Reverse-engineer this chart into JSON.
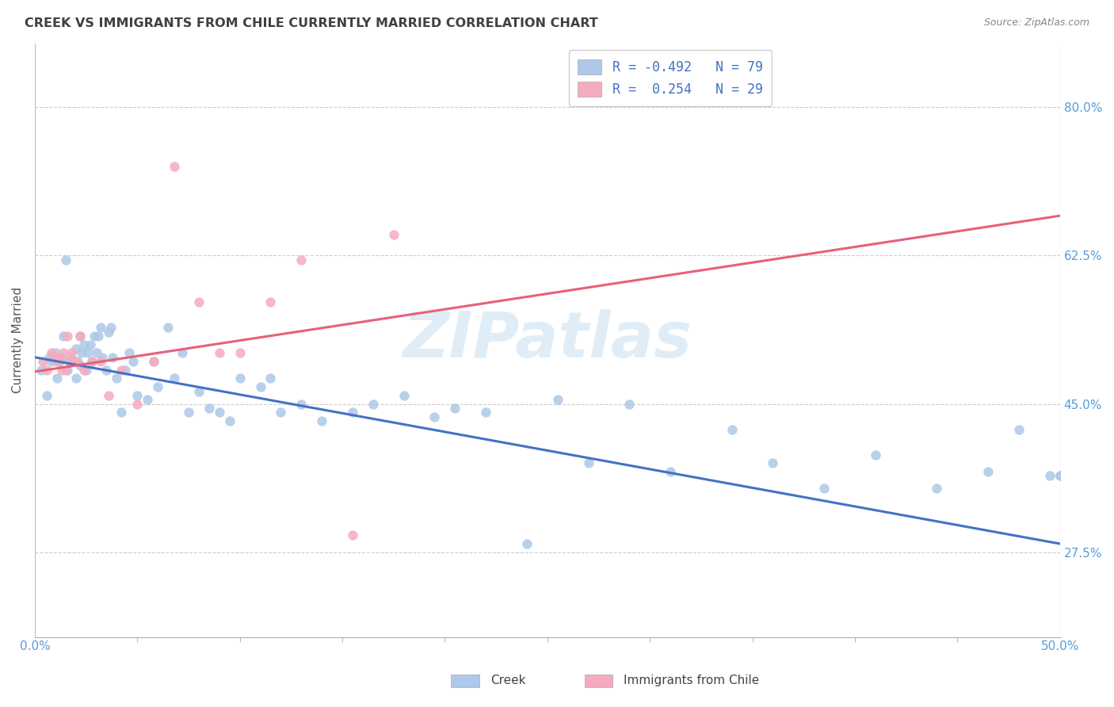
{
  "title": "CREEK VS IMMIGRANTS FROM CHILE CURRENTLY MARRIED CORRELATION CHART",
  "source": "Source: ZipAtlas.com",
  "ylabel": "Currently Married",
  "ytick_vals": [
    0.275,
    0.45,
    0.625,
    0.8
  ],
  "ytick_labels": [
    "27.5%",
    "45.0%",
    "62.5%",
    "80.0%"
  ],
  "xmin": 0.0,
  "xmax": 0.5,
  "ymin": 0.175,
  "ymax": 0.875,
  "series1_color": "#adc8e8",
  "series2_color": "#f5abbe",
  "line1_color": "#4472c4",
  "line2_color": "#e8607a",
  "watermark": "ZIPatlas",
  "title_color": "#404040",
  "axis_label_color": "#5b9bd5",
  "series1_label": "Creek",
  "series2_label": "Immigrants from Chile",
  "blue_line_x0": 0.0,
  "blue_line_y0": 0.505,
  "blue_line_x1": 0.5,
  "blue_line_y1": 0.285,
  "pink_line_x0": 0.0,
  "pink_line_y0": 0.488,
  "pink_line_x1": 0.5,
  "pink_line_y1": 0.672,
  "blue_scatter_x": [
    0.003,
    0.006,
    0.007,
    0.008,
    0.009,
    0.01,
    0.011,
    0.012,
    0.013,
    0.014,
    0.015,
    0.016,
    0.017,
    0.018,
    0.019,
    0.02,
    0.02,
    0.021,
    0.022,
    0.022,
    0.023,
    0.024,
    0.025,
    0.026,
    0.027,
    0.028,
    0.029,
    0.03,
    0.031,
    0.032,
    0.033,
    0.035,
    0.036,
    0.037,
    0.038,
    0.04,
    0.042,
    0.044,
    0.046,
    0.048,
    0.05,
    0.055,
    0.058,
    0.06,
    0.065,
    0.068,
    0.072,
    0.075,
    0.08,
    0.085,
    0.09,
    0.095,
    0.1,
    0.11,
    0.115,
    0.12,
    0.13,
    0.14,
    0.155,
    0.165,
    0.18,
    0.195,
    0.205,
    0.22,
    0.24,
    0.255,
    0.27,
    0.29,
    0.31,
    0.34,
    0.36,
    0.385,
    0.41,
    0.44,
    0.465,
    0.48,
    0.495,
    0.5,
    0.5
  ],
  "blue_scatter_y": [
    0.49,
    0.46,
    0.505,
    0.5,
    0.505,
    0.51,
    0.48,
    0.5,
    0.505,
    0.53,
    0.62,
    0.49,
    0.5,
    0.505,
    0.5,
    0.48,
    0.515,
    0.5,
    0.495,
    0.53,
    0.51,
    0.52,
    0.49,
    0.51,
    0.52,
    0.5,
    0.53,
    0.51,
    0.53,
    0.54,
    0.505,
    0.49,
    0.535,
    0.54,
    0.505,
    0.48,
    0.44,
    0.49,
    0.51,
    0.5,
    0.46,
    0.455,
    0.5,
    0.47,
    0.54,
    0.48,
    0.51,
    0.44,
    0.465,
    0.445,
    0.44,
    0.43,
    0.48,
    0.47,
    0.48,
    0.44,
    0.45,
    0.43,
    0.44,
    0.45,
    0.46,
    0.435,
    0.445,
    0.44,
    0.285,
    0.455,
    0.38,
    0.45,
    0.37,
    0.42,
    0.38,
    0.35,
    0.39,
    0.35,
    0.37,
    0.42,
    0.365,
    0.365,
    0.365
  ],
  "pink_scatter_x": [
    0.004,
    0.006,
    0.008,
    0.01,
    0.011,
    0.012,
    0.013,
    0.014,
    0.015,
    0.016,
    0.017,
    0.018,
    0.02,
    0.022,
    0.024,
    0.028,
    0.032,
    0.036,
    0.042,
    0.05,
    0.058,
    0.068,
    0.08,
    0.09,
    0.1,
    0.115,
    0.13,
    0.155,
    0.175
  ],
  "pink_scatter_y": [
    0.5,
    0.49,
    0.51,
    0.505,
    0.5,
    0.505,
    0.49,
    0.51,
    0.49,
    0.53,
    0.5,
    0.51,
    0.5,
    0.53,
    0.49,
    0.5,
    0.5,
    0.46,
    0.49,
    0.45,
    0.5,
    0.73,
    0.57,
    0.51,
    0.51,
    0.57,
    0.62,
    0.295,
    0.65
  ]
}
